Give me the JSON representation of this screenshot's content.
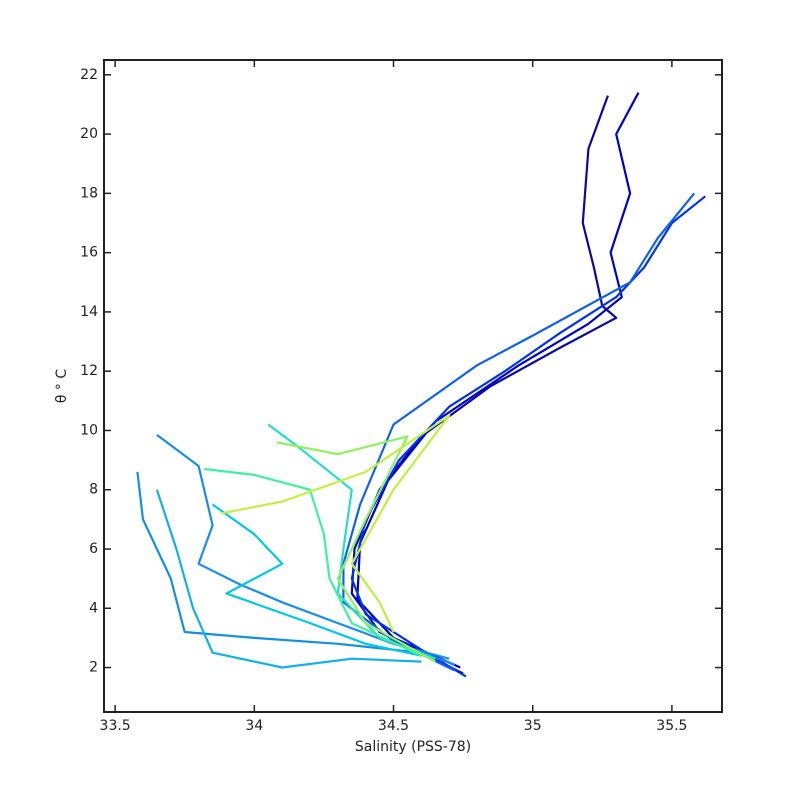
{
  "chart_data": {
    "type": "line",
    "xlabel": "Salinity (PSS-78)",
    "ylabel": "θ ° C",
    "xlim": [
      33.46,
      35.68
    ],
    "ylim": [
      0.5,
      22.5
    ],
    "xticks": [
      33.5,
      34,
      34.5,
      35,
      35.5
    ],
    "yticks": [
      2,
      4,
      6,
      8,
      10,
      12,
      14,
      16,
      18,
      20,
      22
    ],
    "series": [
      {
        "color": "#0a0aa0",
        "x": [
          35.27,
          35.2,
          35.18,
          35.22,
          35.25,
          35.3,
          35.1,
          34.85,
          34.6,
          34.45,
          34.36,
          34.35,
          34.45,
          34.75
        ],
        "values": [
          21.3,
          19.5,
          17,
          15.5,
          14.2,
          13.8,
          12.8,
          11.5,
          9.8,
          8,
          6,
          4.5,
          3.2,
          1.8
        ]
      },
      {
        "color": "#0000cc",
        "x": [
          35.38,
          35.3,
          35.35,
          35.28,
          35.32,
          35.2,
          34.95,
          34.65,
          34.48,
          34.38,
          34.37,
          34.5,
          34.74
        ],
        "values": [
          21.4,
          20,
          18,
          16,
          14.5,
          13.6,
          12.2,
          10.3,
          8.3,
          6.2,
          4.3,
          3,
          2
        ]
      },
      {
        "color": "#0033ee",
        "x": [
          35.62,
          35.5,
          35.4,
          35.3,
          35.1,
          34.9,
          34.7,
          34.52,
          34.4,
          34.35,
          34.4,
          34.6,
          34.76
        ],
        "values": [
          17.9,
          17,
          15.5,
          14.5,
          13.3,
          12,
          10.8,
          9,
          7,
          5,
          3.8,
          2.6,
          1.7
        ]
      },
      {
        "color": "#1060f0",
        "x": [
          35.58,
          35.45,
          35.35,
          35.0,
          34.8,
          34.5,
          34.38,
          34.32,
          34.32,
          34.5,
          34.72
        ],
        "values": [
          18,
          16.5,
          15,
          13.2,
          12.2,
          10.2,
          7.5,
          5.5,
          4.2,
          2.9,
          1.9
        ]
      },
      {
        "color": "#1a8cf0",
        "x": [
          33.65,
          33.8,
          33.85,
          33.8,
          33.95,
          34.1,
          34.3,
          34.5,
          34.7
        ],
        "values": [
          9.85,
          8.8,
          6.8,
          5.5,
          4.8,
          4.2,
          3.5,
          2.8,
          2.3
        ]
      },
      {
        "color": "#1590e0",
        "x": [
          33.58,
          33.6,
          33.7,
          33.75,
          34.0,
          34.3,
          34.6,
          34.72
        ],
        "values": [
          8.6,
          7,
          5,
          3.2,
          3.0,
          2.8,
          2.5,
          2.1
        ]
      },
      {
        "color": "#10b0f0",
        "x": [
          33.65,
          33.72,
          33.78,
          33.85,
          34.1,
          34.35,
          34.6
        ],
        "values": [
          8,
          6,
          4,
          2.5,
          2.0,
          2.3,
          2.2
        ]
      },
      {
        "color": "#00c8e8",
        "x": [
          33.85,
          34.0,
          34.1,
          33.9,
          34.2,
          34.4,
          34.6
        ],
        "values": [
          7.5,
          6.5,
          5.5,
          4.5,
          3.5,
          2.8,
          2.4
        ]
      },
      {
        "color": "#20e0c8",
        "x": [
          34.05,
          34.15,
          34.35,
          34.32,
          34.3,
          34.45,
          34.65
        ],
        "values": [
          10.2,
          9.5,
          8,
          6,
          4.5,
          3,
          2.3
        ]
      },
      {
        "color": "#40f0a0",
        "x": [
          33.82,
          34.0,
          34.2,
          34.25,
          34.27,
          34.35,
          34.6
        ],
        "values": [
          8.7,
          8.5,
          8,
          6.5,
          5,
          3.5,
          2.4
        ]
      },
      {
        "color": "#90f060",
        "x": [
          34.08,
          34.3,
          34.55,
          34.4,
          34.3,
          34.4,
          34.65
        ],
        "values": [
          9.6,
          9.2,
          9.8,
          7,
          5,
          3.5,
          2.2
        ]
      },
      {
        "color": "#c0f040",
        "x": [
          33.88,
          34.1,
          34.4,
          34.7,
          34.5,
          34.35,
          34.45,
          34.5
        ],
        "values": [
          7.2,
          7.6,
          8.6,
          10.5,
          8,
          5.5,
          4.2,
          3.2
        ]
      }
    ]
  }
}
